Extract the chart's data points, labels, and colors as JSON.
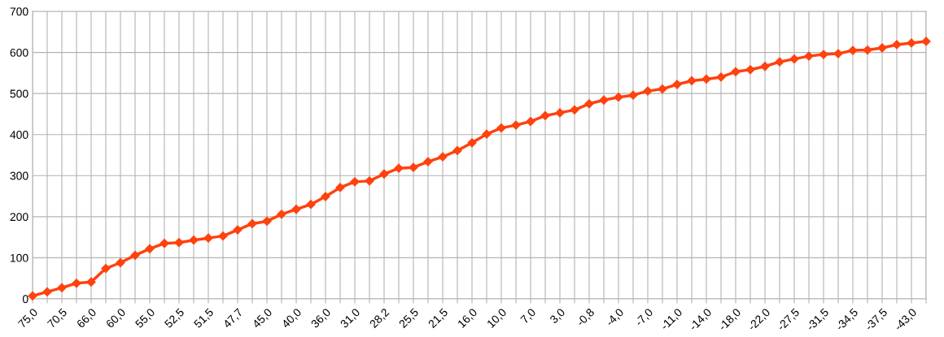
{
  "chart_data": {
    "type": "line",
    "categories": [
      "75,0",
      null,
      "70,5",
      null,
      "66,0",
      null,
      "60,0",
      null,
      "55,0",
      null,
      "52,5",
      null,
      "51,5",
      null,
      "47,7",
      null,
      "45,0",
      null,
      "40,0",
      null,
      "36,0",
      null,
      "31,0",
      null,
      "28,2",
      null,
      "25,5",
      null,
      "21,5",
      null,
      "16,0",
      null,
      "10,0",
      null,
      "7,0",
      null,
      "3,0",
      null,
      "-0,8",
      null,
      "-4,0",
      null,
      "-7,0",
      null,
      "-11,0",
      null,
      "-14,0",
      null,
      "-18,0",
      null,
      "-22,0",
      null,
      "-27,5",
      null,
      "-31,5",
      null,
      "-34,5",
      null,
      "-37,5",
      null,
      "-43,0",
      null
    ],
    "series": [
      {
        "color": "#ff420e",
        "values": [
          7,
          17,
          27,
          38,
          41,
          74,
          88,
          106,
          122,
          135,
          137,
          143,
          148,
          153,
          168,
          183,
          189,
          206,
          218,
          230,
          249,
          271,
          285,
          287,
          304,
          318,
          320,
          334,
          346,
          361,
          380,
          401,
          416,
          423,
          432,
          446,
          453,
          460,
          475,
          484,
          491,
          496,
          506,
          511,
          522,
          531,
          535,
          540,
          553,
          558,
          566,
          577,
          584,
          591,
          595,
          597,
          605,
          606,
          611,
          619,
          623,
          627
        ]
      }
    ],
    "ylim": [
      0,
      700
    ],
    "yticks": [
      0,
      100,
      200,
      300,
      400,
      500,
      600,
      700
    ],
    "grid": true,
    "marker": "diamond",
    "line_style": "solid"
  }
}
